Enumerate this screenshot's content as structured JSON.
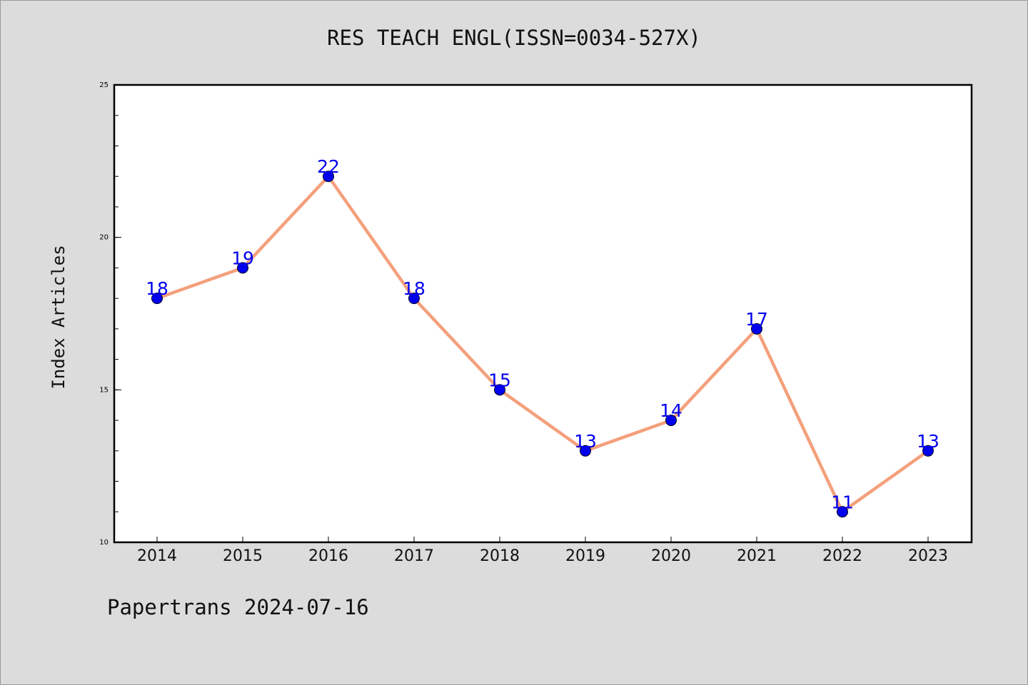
{
  "page": {
    "footer": "Papertrans 2024-07-16"
  },
  "chart_data": {
    "type": "line",
    "title": "RES TEACH ENGL(ISSN=0034-527X)",
    "xlabel": "",
    "ylabel": "Index Articles",
    "categories": [
      "2014",
      "2015",
      "2016",
      "2017",
      "2018",
      "2019",
      "2020",
      "2021",
      "2022",
      "2023"
    ],
    "values": [
      18,
      19,
      22,
      18,
      15,
      13,
      14,
      17,
      11,
      13
    ],
    "ylim": [
      10,
      25
    ],
    "yticks": [
      10,
      15,
      20,
      25
    ],
    "grid": false,
    "legend": "none",
    "colors": {
      "line": "#f4a07c",
      "marker": "#0000ee",
      "label": "#0000ee",
      "plot_bg": "#ffffff",
      "page_bg": "#dcdcdc"
    }
  }
}
